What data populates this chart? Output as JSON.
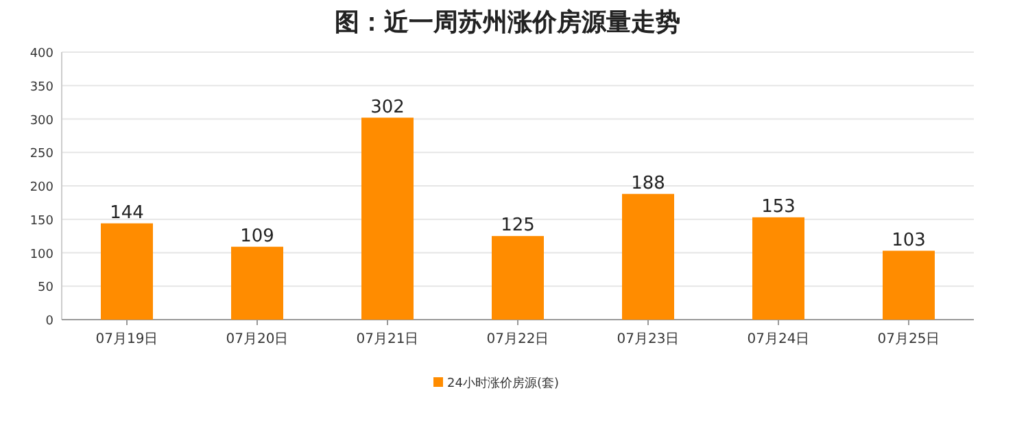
{
  "chart_data": {
    "type": "bar",
    "title": "图：近一周苏州涨价房源量走势",
    "categories": [
      "07月19日",
      "07月20日",
      "07月21日",
      "07月22日",
      "07月23日",
      "07月24日",
      "07月25日"
    ],
    "series": [
      {
        "name": "24小时涨价房源(套)",
        "color": "#ff8c00",
        "values": [
          144,
          109,
          302,
          125,
          188,
          153,
          103
        ]
      }
    ],
    "ylim": [
      0,
      400
    ],
    "yticks": [
      0,
      50,
      100,
      150,
      200,
      250,
      300,
      350,
      400
    ],
    "grid": "y",
    "legend": "bottom",
    "data_labels": true
  }
}
